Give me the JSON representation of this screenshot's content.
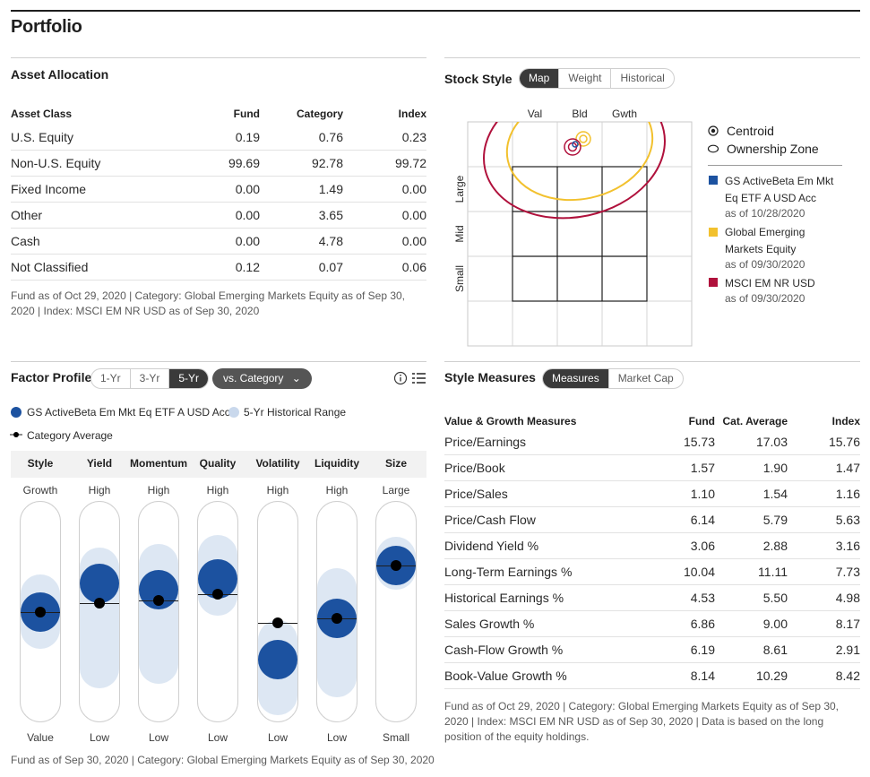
{
  "page_title": "Portfolio",
  "asset_allocation": {
    "title": "Asset Allocation",
    "headers": [
      "Asset Class",
      "Fund",
      "Category",
      "Index"
    ],
    "rows": [
      [
        "U.S. Equity",
        "0.19",
        "0.76",
        "0.23"
      ],
      [
        "Non-U.S. Equity",
        "99.69",
        "92.78",
        "99.72"
      ],
      [
        "Fixed Income",
        "0.00",
        "1.49",
        "0.00"
      ],
      [
        "Other",
        "0.00",
        "3.65",
        "0.00"
      ],
      [
        "Cash",
        "0.00",
        "4.78",
        "0.00"
      ],
      [
        "Not Classified",
        "0.12",
        "0.07",
        "0.06"
      ]
    ],
    "footnote": "Fund as of Oct 29, 2020 | Category: Global Emerging Markets Equity as of Sep 30, 2020 | Index: MSCI EM NR USD as of Sep 30, 2020"
  },
  "stock_style": {
    "title": "Stock Style",
    "tabs": [
      "Map",
      "Weight",
      "Historical"
    ],
    "active_tab": "Map",
    "col_labels": [
      "Val",
      "Bld",
      "Gwth"
    ],
    "row_labels": [
      "Large",
      "Mid",
      "Small"
    ],
    "legend_centroid": "Centroid",
    "legend_zone": "Ownership Zone",
    "series": [
      {
        "name": "GS ActiveBeta Em Mkt Eq ETF A USD Acc",
        "asof": "as of 10/28/2020",
        "color": "#1c52a0"
      },
      {
        "name": "Global Emerging Markets Equity",
        "asof": "as of 09/30/2020",
        "color": "#f2c12e"
      },
      {
        "name": "MSCI EM NR USD",
        "asof": "as of 09/30/2020",
        "color": "#b0113c"
      }
    ]
  },
  "factor_profile": {
    "title": "Factor Profile",
    "periods": [
      "1-Yr",
      "3-Yr",
      "5-Yr"
    ],
    "active_period": "5-Yr",
    "compare_label": "vs. Category",
    "legend_fund": "GS ActiveBeta Em Mkt Eq ETF A USD Acc",
    "legend_range": "5-Yr Historical Range",
    "legend_category": "Category Average",
    "factors": [
      {
        "name": "Style",
        "top": "Growth",
        "bottom": "Value",
        "fund": 0.5,
        "cat": 0.5,
        "range": [
          0.33,
          0.67
        ]
      },
      {
        "name": "Yield",
        "top": "High",
        "bottom": "Low",
        "fund": 0.63,
        "cat": 0.54,
        "range": [
          0.15,
          0.79
        ]
      },
      {
        "name": "Momentum",
        "top": "High",
        "bottom": "Low",
        "fund": 0.6,
        "cat": 0.55,
        "range": [
          0.17,
          0.81
        ]
      },
      {
        "name": "Quality",
        "top": "High",
        "bottom": "Low",
        "fund": 0.65,
        "cat": 0.58,
        "range": [
          0.48,
          0.85
        ]
      },
      {
        "name": "Volatility",
        "top": "High",
        "bottom": "Low",
        "fund": 0.28,
        "cat": 0.45,
        "range": [
          0.03,
          0.46
        ]
      },
      {
        "name": "Liquidity",
        "top": "High",
        "bottom": "Low",
        "fund": 0.47,
        "cat": 0.47,
        "range": [
          0.11,
          0.7
        ]
      },
      {
        "name": "Size",
        "top": "Large",
        "bottom": "Small",
        "fund": 0.71,
        "cat": 0.71,
        "range": [
          0.6,
          0.84
        ]
      }
    ],
    "footnote": "Fund as of Sep 30, 2020 | Category: Global Emerging Markets Equity as of Sep 30, 2020"
  },
  "style_measures": {
    "title": "Style Measures",
    "tabs": [
      "Measures",
      "Market Cap"
    ],
    "active_tab": "Measures",
    "headers": [
      "Value & Growth Measures",
      "Fund",
      "Cat. Average",
      "Index"
    ],
    "rows": [
      [
        "Price/Earnings",
        "15.73",
        "17.03",
        "15.76"
      ],
      [
        "Price/Book",
        "1.57",
        "1.90",
        "1.47"
      ],
      [
        "Price/Sales",
        "1.10",
        "1.54",
        "1.16"
      ],
      [
        "Price/Cash Flow",
        "6.14",
        "5.79",
        "5.63"
      ],
      [
        "Dividend Yield %",
        "3.06",
        "2.88",
        "3.16"
      ],
      [
        "Long-Term Earnings %",
        "10.04",
        "11.11",
        "7.73"
      ],
      [
        "Historical Earnings %",
        "4.53",
        "5.50",
        "4.98"
      ],
      [
        "Sales Growth %",
        "6.86",
        "9.00",
        "8.17"
      ],
      [
        "Cash-Flow Growth %",
        "6.19",
        "8.61",
        "2.91"
      ],
      [
        "Book-Value Growth %",
        "8.14",
        "10.29",
        "8.42"
      ]
    ],
    "footnote": "Fund as of Oct 29, 2020 | Category: Global Emerging Markets Equity as of Sep 30, 2020 | Index: MSCI EM NR USD as of Sep 30, 2020 | Data is based on the long position of the equity holdings."
  }
}
